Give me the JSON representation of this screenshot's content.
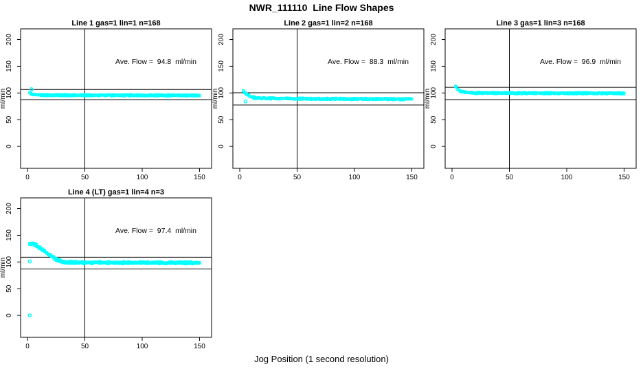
{
  "figure": {
    "title": "NWR_111110  Line Flow Shapes",
    "xlabel": "Jog Position (1 second resolution)"
  },
  "chart_data": {
    "type": "scatter",
    "layout": "4 panels in 2x2 grid (R base graphics style), panel 4 slot bottom-left only",
    "title": "NWR_111110  Line Flow Shapes",
    "xlabel": "Jog Position (1 second resolution)",
    "ylabel": "ml/min",
    "x_ticks": [
      0,
      50,
      100,
      150
    ],
    "y_ticks": [
      0,
      50,
      100,
      150,
      200
    ],
    "x_range": [
      -6,
      160.5
    ],
    "y_range": [
      -41,
      220
    ],
    "grid": false,
    "vline_x": 50,
    "point_color": "#00FFFF",
    "axis_color": "#000000",
    "background": "#FFFFFF",
    "panels": [
      {
        "title": "Line 1 gas=1 lin=1 n=168",
        "annotation": "Ave. Flow =  94.8  ml/min",
        "ave_flow": 94.8,
        "n": 168,
        "ref_lines": [
          106.5,
          87.5
        ],
        "anchors": [
          [
            2,
            100
          ],
          [
            4,
            97
          ],
          [
            8,
            96.3
          ],
          [
            20,
            96
          ],
          [
            80,
            95.7
          ],
          [
            150,
            95.5
          ]
        ],
        "outliers": [
          [
            3.5,
            107
          ]
        ],
        "x_start": 2,
        "x_end": 150,
        "jitter": 1.1,
        "passes": 2
      },
      {
        "title": "Line 2 gas=1 lin=2 n=168",
        "annotation": "Ave. Flow =  88.3  ml/min",
        "ave_flow": 88.3,
        "n": 168,
        "ref_lines": [
          100.5,
          77.5
        ],
        "anchors": [
          [
            3,
            103
          ],
          [
            4,
            101
          ],
          [
            6,
            98
          ],
          [
            9,
            94
          ],
          [
            13,
            91
          ],
          [
            20,
            90
          ],
          [
            60,
            89
          ],
          [
            150,
            88.5
          ]
        ],
        "outliers": [
          [
            5,
            84
          ]
        ],
        "x_start": 3,
        "x_end": 150,
        "jitter": 1.1,
        "passes": 2
      },
      {
        "title": "Line 3 gas=1 lin=3 n=168",
        "annotation": "Ave. Flow =  96.9  ml/min",
        "ave_flow": 96.9,
        "n": 168,
        "ref_lines": [
          110.5,
          87.5
        ],
        "anchors": [
          [
            3,
            113
          ],
          [
            4,
            110
          ],
          [
            5,
            107
          ],
          [
            8,
            103
          ],
          [
            12,
            100.8
          ],
          [
            20,
            100
          ],
          [
            60,
            99.6
          ],
          [
            150,
            99.5
          ]
        ],
        "outliers": [],
        "x_start": 3,
        "x_end": 150,
        "jitter": 1.1,
        "passes": 2
      },
      {
        "title": "Line 4 (LT) gas=1 lin=4 n=3",
        "annotation": "Ave. Flow =  97.4  ml/min",
        "ave_flow": 97.4,
        "n": 3,
        "ref_lines": [
          109,
          87
        ],
        "anchors": [
          [
            2,
            134
          ],
          [
            5,
            134
          ],
          [
            7,
            132
          ],
          [
            9,
            129
          ],
          [
            12,
            125
          ],
          [
            15,
            120
          ],
          [
            18,
            115
          ],
          [
            22,
            109
          ],
          [
            26,
            104
          ],
          [
            30,
            101
          ],
          [
            35,
            99.5
          ],
          [
            45,
            99
          ],
          [
            70,
            98.7
          ],
          [
            150,
            98.5
          ]
        ],
        "outliers": [
          [
            2,
            101
          ],
          [
            2,
            0
          ]
        ],
        "x_start": 2,
        "x_end": 150,
        "jitter": 1.4,
        "passes": 3
      }
    ]
  }
}
